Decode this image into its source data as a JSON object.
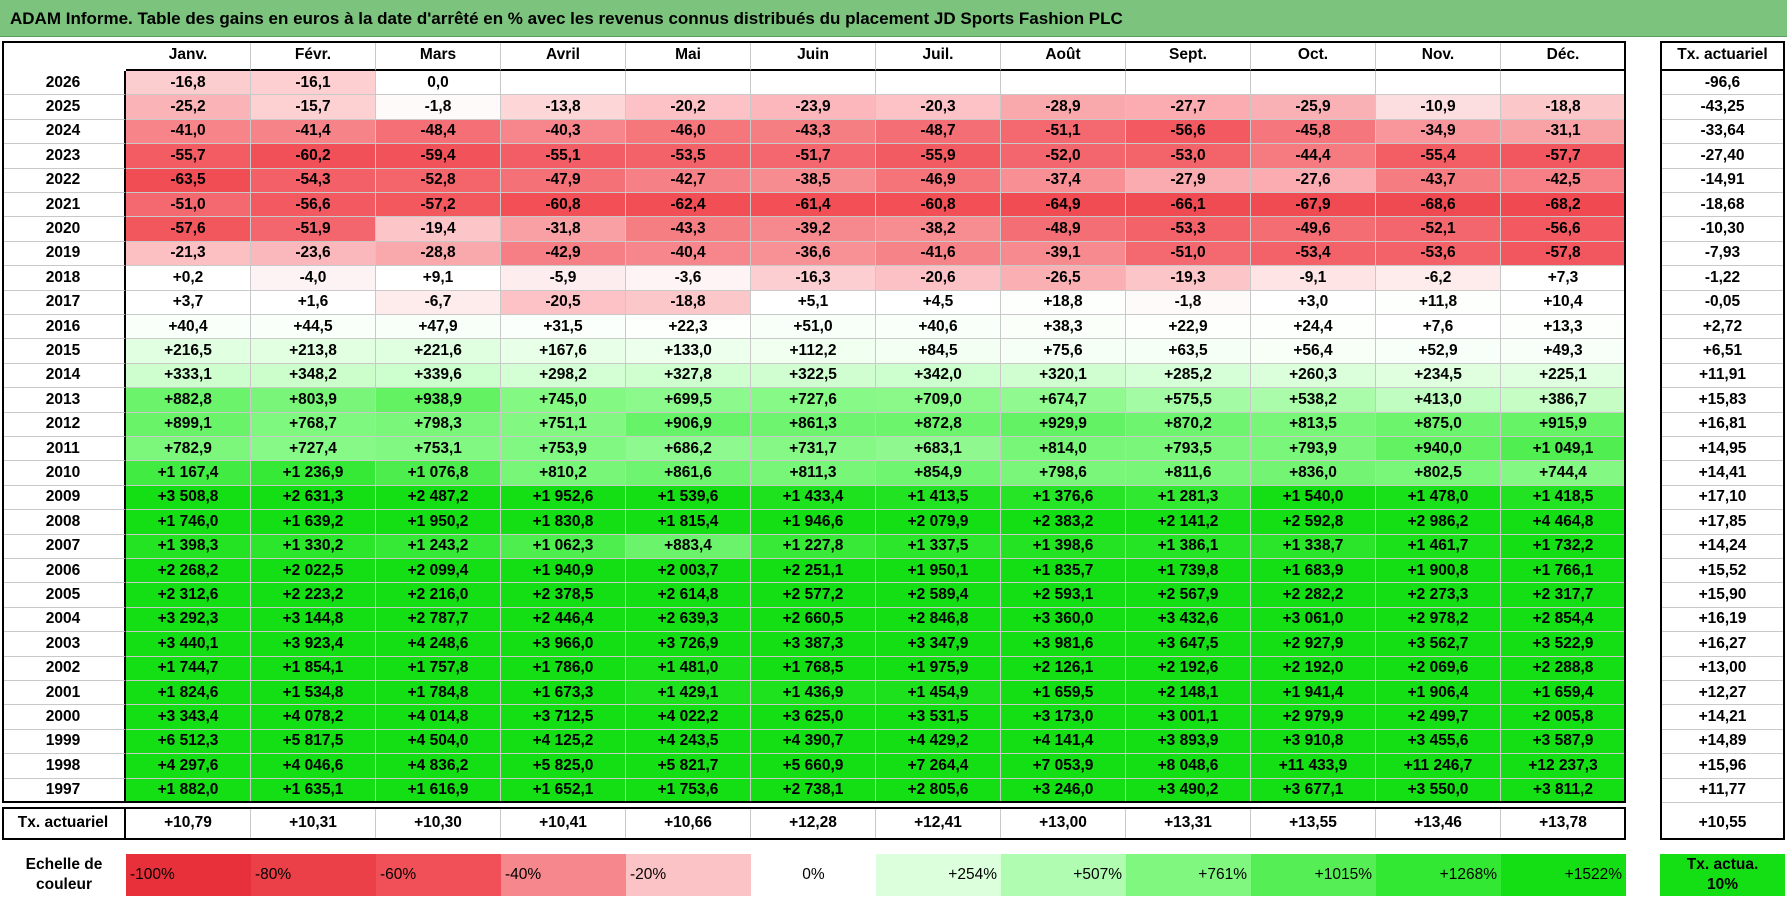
{
  "title": "ADAM Informe. Table des gains en euros à la date d'arrêté en % avec les revenus connus distribués du placement JD Sports Fashion PLC",
  "chart_data": {
    "type": "heatmap",
    "months": [
      "Janv.",
      "Févr.",
      "Mars",
      "Avril",
      "Mai",
      "Juin",
      "Juil.",
      "Août",
      "Sept.",
      "Oct.",
      "Nov.",
      "Déc."
    ],
    "rate_column_header": "Tx. actuariel",
    "rows": [
      {
        "year": "2026",
        "values": [
          "-16,8",
          "-16,1",
          "0,0",
          "",
          "",
          "",
          "",
          "",
          "",
          "",
          "",
          ""
        ],
        "rate": "-96,6"
      },
      {
        "year": "2025",
        "values": [
          "-25,2",
          "-15,7",
          "-1,8",
          "-13,8",
          "-20,2",
          "-23,9",
          "-20,3",
          "-28,9",
          "-27,7",
          "-25,9",
          "-10,9",
          "-18,8"
        ],
        "rate": "-43,25"
      },
      {
        "year": "2024",
        "values": [
          "-41,0",
          "-41,4",
          "-48,4",
          "-40,3",
          "-46,0",
          "-43,3",
          "-48,7",
          "-51,1",
          "-56,6",
          "-45,8",
          "-34,9",
          "-31,1"
        ],
        "rate": "-33,64"
      },
      {
        "year": "2023",
        "values": [
          "-55,7",
          "-60,2",
          "-59,4",
          "-55,1",
          "-53,5",
          "-51,7",
          "-55,9",
          "-52,0",
          "-53,0",
          "-44,4",
          "-55,4",
          "-57,7"
        ],
        "rate": "-27,40"
      },
      {
        "year": "2022",
        "values": [
          "-63,5",
          "-54,3",
          "-52,8",
          "-47,9",
          "-42,7",
          "-38,5",
          "-46,9",
          "-37,4",
          "-27,9",
          "-27,6",
          "-43,7",
          "-42,5"
        ],
        "rate": "-14,91"
      },
      {
        "year": "2021",
        "values": [
          "-51,0",
          "-56,6",
          "-57,2",
          "-60,8",
          "-62,4",
          "-61,4",
          "-60,8",
          "-64,9",
          "-66,1",
          "-67,9",
          "-68,6",
          "-68,2"
        ],
        "rate": "-18,68"
      },
      {
        "year": "2020",
        "values": [
          "-57,6",
          "-51,9",
          "-19,4",
          "-31,8",
          "-43,3",
          "-39,2",
          "-38,2",
          "-48,9",
          "-53,3",
          "-49,6",
          "-52,1",
          "-56,6"
        ],
        "rate": "-10,30"
      },
      {
        "year": "2019",
        "values": [
          "-21,3",
          "-23,6",
          "-28,8",
          "-42,9",
          "-40,4",
          "-36,6",
          "-41,6",
          "-39,1",
          "-51,0",
          "-53,4",
          "-53,6",
          "-57,8"
        ],
        "rate": "-7,93"
      },
      {
        "year": "2018",
        "values": [
          "+0,2",
          "-4,0",
          "+9,1",
          "-5,9",
          "-3,6",
          "-16,3",
          "-20,6",
          "-26,5",
          "-19,3",
          "-9,1",
          "-6,2",
          "+7,3"
        ],
        "rate": "-1,22"
      },
      {
        "year": "2017",
        "values": [
          "+3,7",
          "+1,6",
          "-6,7",
          "-20,5",
          "-18,8",
          "+5,1",
          "+4,5",
          "+18,8",
          "-1,8",
          "+3,0",
          "+11,8",
          "+10,4"
        ],
        "rate": "-0,05"
      },
      {
        "year": "2016",
        "values": [
          "+40,4",
          "+44,5",
          "+47,9",
          "+31,5",
          "+22,3",
          "+51,0",
          "+40,6",
          "+38,3",
          "+22,9",
          "+24,4",
          "+7,6",
          "+13,3"
        ],
        "rate": "+2,72"
      },
      {
        "year": "2015",
        "values": [
          "+216,5",
          "+213,8",
          "+221,6",
          "+167,6",
          "+133,0",
          "+112,2",
          "+84,5",
          "+75,6",
          "+63,5",
          "+56,4",
          "+52,9",
          "+49,3"
        ],
        "rate": "+6,51"
      },
      {
        "year": "2014",
        "values": [
          "+333,1",
          "+348,2",
          "+339,6",
          "+298,2",
          "+327,8",
          "+322,5",
          "+342,0",
          "+320,1",
          "+285,2",
          "+260,3",
          "+234,5",
          "+225,1"
        ],
        "rate": "+11,91"
      },
      {
        "year": "2013",
        "values": [
          "+882,8",
          "+803,9",
          "+938,9",
          "+745,0",
          "+699,5",
          "+727,6",
          "+709,0",
          "+674,7",
          "+575,5",
          "+538,2",
          "+413,0",
          "+386,7"
        ],
        "rate": "+15,83"
      },
      {
        "year": "2012",
        "values": [
          "+899,1",
          "+768,7",
          "+798,3",
          "+751,1",
          "+906,9",
          "+861,3",
          "+872,8",
          "+929,9",
          "+870,2",
          "+813,5",
          "+875,0",
          "+915,9"
        ],
        "rate": "+16,81"
      },
      {
        "year": "2011",
        "values": [
          "+782,9",
          "+727,4",
          "+753,1",
          "+753,9",
          "+686,2",
          "+731,7",
          "+683,1",
          "+814,0",
          "+793,5",
          "+793,9",
          "+940,0",
          "+1 049,1"
        ],
        "rate": "+14,95"
      },
      {
        "year": "2010",
        "values": [
          "+1 167,4",
          "+1 236,9",
          "+1 076,8",
          "+810,2",
          "+861,6",
          "+811,3",
          "+854,9",
          "+798,6",
          "+811,6",
          "+836,0",
          "+802,5",
          "+744,4"
        ],
        "rate": "+14,41"
      },
      {
        "year": "2009",
        "values": [
          "+3 508,8",
          "+2 631,3",
          "+2 487,2",
          "+1 952,6",
          "+1 539,6",
          "+1 433,4",
          "+1 413,5",
          "+1 376,6",
          "+1 281,3",
          "+1 540,0",
          "+1 478,0",
          "+1 418,5"
        ],
        "rate": "+17,10"
      },
      {
        "year": "2008",
        "values": [
          "+1 746,0",
          "+1 639,2",
          "+1 950,2",
          "+1 830,8",
          "+1 815,4",
          "+1 946,6",
          "+2 079,9",
          "+2 383,2",
          "+2 141,2",
          "+2 592,8",
          "+2 986,2",
          "+4 464,8"
        ],
        "rate": "+17,85"
      },
      {
        "year": "2007",
        "values": [
          "+1 398,3",
          "+1 330,2",
          "+1 243,2",
          "+1 062,3",
          "+883,4",
          "+1 227,8",
          "+1 337,5",
          "+1 398,6",
          "+1 386,1",
          "+1 338,7",
          "+1 461,7",
          "+1 732,2"
        ],
        "rate": "+14,24"
      },
      {
        "year": "2006",
        "values": [
          "+2 268,2",
          "+2 022,5",
          "+2 099,4",
          "+1 940,9",
          "+2 003,7",
          "+2 251,1",
          "+1 950,1",
          "+1 835,7",
          "+1 739,8",
          "+1 683,9",
          "+1 900,8",
          "+1 766,1"
        ],
        "rate": "+15,52"
      },
      {
        "year": "2005",
        "values": [
          "+2 312,6",
          "+2 223,2",
          "+2 216,0",
          "+2 378,5",
          "+2 614,8",
          "+2 577,2",
          "+2 589,4",
          "+2 593,1",
          "+2 567,9",
          "+2 282,2",
          "+2 273,3",
          "+2 317,7"
        ],
        "rate": "+15,90"
      },
      {
        "year": "2004",
        "values": [
          "+3 292,3",
          "+3 144,8",
          "+2 787,7",
          "+2 446,4",
          "+2 639,3",
          "+2 660,5",
          "+2 846,8",
          "+3 360,0",
          "+3 432,6",
          "+3 061,0",
          "+2 978,2",
          "+2 854,4"
        ],
        "rate": "+16,19"
      },
      {
        "year": "2003",
        "values": [
          "+3 440,1",
          "+3 923,4",
          "+4 248,6",
          "+3 966,0",
          "+3 726,9",
          "+3 387,3",
          "+3 347,9",
          "+3 981,6",
          "+3 647,5",
          "+2 927,9",
          "+3 562,7",
          "+3 522,9"
        ],
        "rate": "+16,27"
      },
      {
        "year": "2002",
        "values": [
          "+1 744,7",
          "+1 854,1",
          "+1 757,8",
          "+1 786,0",
          "+1 481,0",
          "+1 768,5",
          "+1 975,9",
          "+2 126,1",
          "+2 192,6",
          "+2 192,0",
          "+2 069,6",
          "+2 288,8"
        ],
        "rate": "+13,00"
      },
      {
        "year": "2001",
        "values": [
          "+1 824,6",
          "+1 534,8",
          "+1 784,8",
          "+1 673,3",
          "+1 429,1",
          "+1 436,9",
          "+1 454,9",
          "+1 659,5",
          "+2 148,1",
          "+1 941,4",
          "+1 906,4",
          "+1 659,4"
        ],
        "rate": "+12,27"
      },
      {
        "year": "2000",
        "values": [
          "+3 343,4",
          "+4 078,2",
          "+4 014,8",
          "+3 712,5",
          "+4 022,2",
          "+3 625,0",
          "+3 531,5",
          "+3 173,0",
          "+3 001,1",
          "+2 979,9",
          "+2 499,7",
          "+2 005,8"
        ],
        "rate": "+14,21"
      },
      {
        "year": "1999",
        "values": [
          "+6 512,3",
          "+5 817,5",
          "+4 504,0",
          "+4 125,2",
          "+4 243,5",
          "+4 390,7",
          "+4 429,2",
          "+4 141,4",
          "+3 893,9",
          "+3 910,8",
          "+3 455,6",
          "+3 587,9"
        ],
        "rate": "+14,89"
      },
      {
        "year": "1998",
        "values": [
          "+4 297,6",
          "+4 046,6",
          "+4 836,2",
          "+5 825,0",
          "+5 821,7",
          "+5 660,9",
          "+7 264,4",
          "+7 053,9",
          "+8 048,6",
          "+11 433,9",
          "+11 246,7",
          "+12 237,3"
        ],
        "rate": "+15,96"
      },
      {
        "year": "1997",
        "values": [
          "+1 882,0",
          "+1 635,1",
          "+1 616,9",
          "+1 652,1",
          "+1 753,6",
          "+2 738,1",
          "+2 805,6",
          "+3 246,0",
          "+3 490,2",
          "+3 677,1",
          "+3 550,0",
          "+3 811,2"
        ],
        "rate": "+11,77"
      }
    ],
    "footer": {
      "label": "Tx. actuariel",
      "values": [
        "+10,79",
        "+10,31",
        "+10,30",
        "+10,41",
        "+10,66",
        "+12,28",
        "+12,41",
        "+13,00",
        "+13,31",
        "+13,55",
        "+13,46",
        "+13,78"
      ],
      "rate": "+10,55"
    },
    "color_scale": {
      "label": "Echelle de couleur",
      "stops": [
        {
          "label": "-100%",
          "value": -100,
          "color": "#e8303a"
        },
        {
          "label": "-80%",
          "value": -80,
          "color": "#ec4049"
        },
        {
          "label": "-60%",
          "value": -60,
          "color": "#f25058"
        },
        {
          "label": "-40%",
          "value": -40,
          "color": "#f6878c"
        },
        {
          "label": "-20%",
          "value": -20,
          "color": "#fcc3c6"
        },
        {
          "label": "0%",
          "value": 0,
          "color": "#ffffff"
        },
        {
          "label": "+254%",
          "value": 254,
          "color": "#dcffdc"
        },
        {
          "label": "+507%",
          "value": 507,
          "color": "#b0fcb0"
        },
        {
          "label": "+761%",
          "value": 761,
          "color": "#80f880"
        },
        {
          "label": "+1015%",
          "value": 1015,
          "color": "#55ef55"
        },
        {
          "label": "+1268%",
          "value": 1268,
          "color": "#33e833"
        },
        {
          "label": "+1522%",
          "value": 1522,
          "color": "#14df14"
        }
      ],
      "rate_legend_label": "Tx. actua. 10%",
      "rate_legend_color": "#14df14"
    }
  }
}
